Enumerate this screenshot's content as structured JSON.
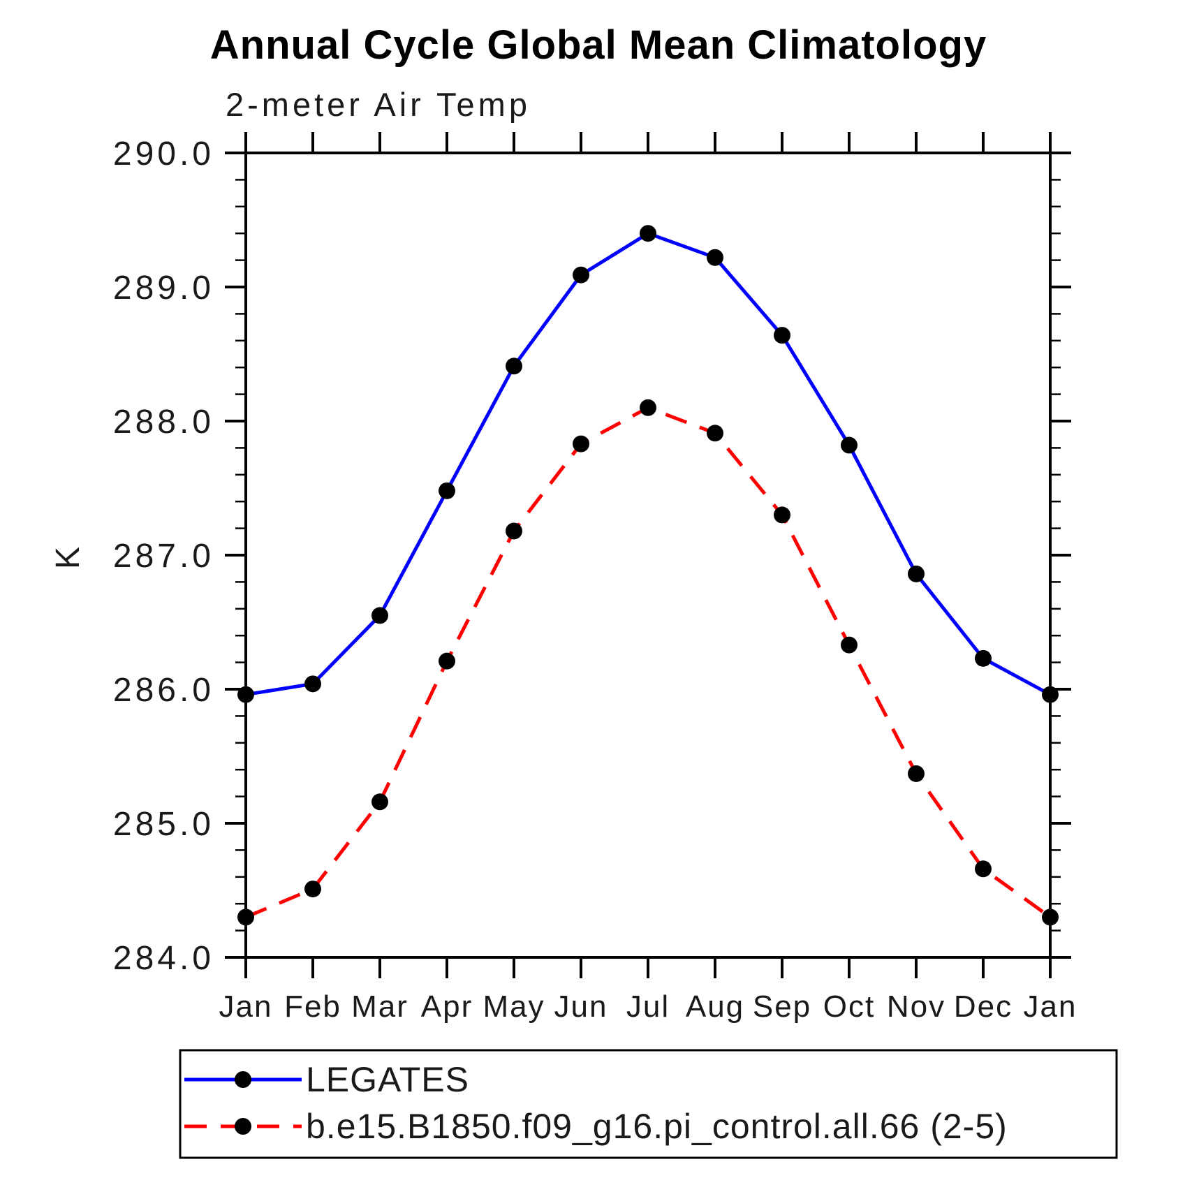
{
  "chart_data": {
    "type": "line",
    "title": "Annual Cycle Global Mean Climatology",
    "subtitle": "2-meter Air Temp",
    "ylabel": "K",
    "xlabel": "",
    "ylim": [
      284.0,
      290.0
    ],
    "ytick_step": 1.0,
    "yminor_step": 0.2,
    "ytick_labels": [
      "290.0",
      "289.0",
      "288.0",
      "287.0",
      "286.0",
      "285.0",
      "284.0"
    ],
    "grid": false,
    "legend_position": "bottom",
    "categories": [
      "Jan",
      "Feb",
      "Mar",
      "Apr",
      "May",
      "Jun",
      "Jul",
      "Aug",
      "Sep",
      "Oct",
      "Nov",
      "Dec",
      "Jan"
    ],
    "series": [
      {
        "name": "LEGATES",
        "color": "#0000ff",
        "line_style": "solid",
        "marker": "filled-circle",
        "marker_color": "#000000",
        "values": [
          285.96,
          286.04,
          286.55,
          287.48,
          288.41,
          289.09,
          289.4,
          289.22,
          288.64,
          287.82,
          286.86,
          286.23,
          285.96
        ]
      },
      {
        "name": "b.e15.B1850.f09_g16.pi_control.all.66 (2-5)",
        "color": "#ff0000",
        "line_style": "dashed",
        "marker": "filled-circle",
        "marker_color": "#000000",
        "values": [
          284.3,
          284.51,
          285.16,
          286.21,
          287.18,
          287.83,
          288.1,
          287.91,
          287.3,
          286.33,
          285.37,
          284.66,
          284.3
        ]
      }
    ]
  }
}
